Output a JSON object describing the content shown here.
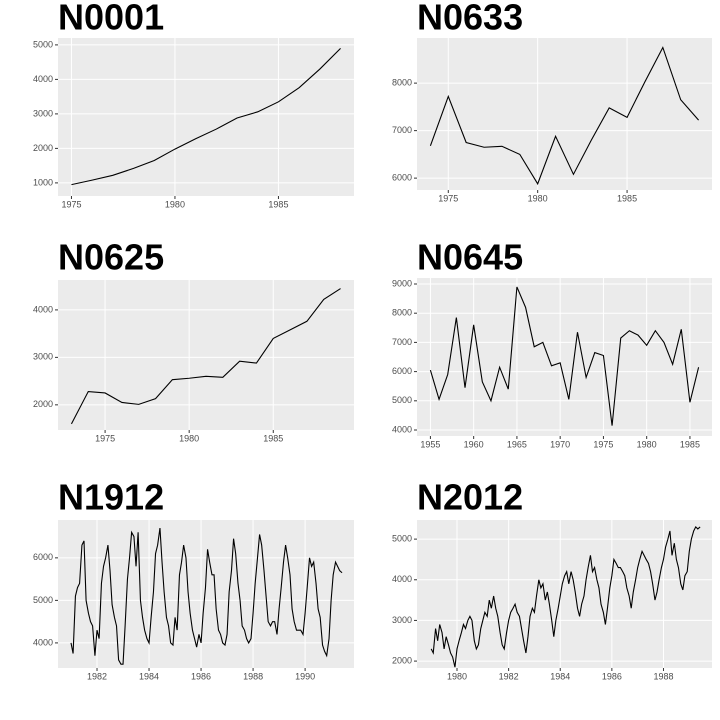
{
  "chart_data": [
    {
      "type": "line",
      "title": "N0001",
      "color": "#000000",
      "grid": true,
      "x": [
        1975,
        1976,
        1977,
        1978,
        1979,
        1980,
        1981,
        1982,
        1983,
        1984,
        1985,
        1986,
        1987,
        1988
      ],
      "values": [
        950,
        1080,
        1220,
        1420,
        1650,
        1980,
        2280,
        2560,
        2880,
        3060,
        3350,
        3760,
        4300,
        4900
      ],
      "xlim": [
        1974.35,
        1988.65
      ],
      "ylim": [
        620,
        5200
      ],
      "xticks": [
        1975,
        1980,
        1985
      ],
      "yticks": [
        1000,
        2000,
        3000,
        4000,
        5000
      ]
    },
    {
      "type": "line",
      "title": "N0633",
      "color": "#000000",
      "grid": true,
      "x": [
        1974,
        1975,
        1976,
        1977,
        1978,
        1979,
        1980,
        1981,
        1982,
        1983,
        1984,
        1985,
        1986,
        1987,
        1988,
        1989
      ],
      "values": [
        6680,
        7720,
        6750,
        6650,
        6670,
        6500,
        5880,
        6880,
        6080,
        6800,
        7480,
        7280,
        8030,
        8750,
        7650,
        7220
      ],
      "xlim": [
        1973.25,
        1989.75
      ],
      "ylim": [
        5750,
        8950
      ],
      "xticks": [
        1975,
        1980,
        1985
      ],
      "yticks": [
        6000,
        7000,
        8000
      ]
    },
    {
      "type": "line",
      "title": "N0625",
      "color": "#000000",
      "grid": true,
      "x": [
        1973,
        1974,
        1975,
        1976,
        1977,
        1978,
        1979,
        1980,
        1981,
        1982,
        1983,
        1984,
        1985,
        1986,
        1987,
        1988,
        1989
      ],
      "values": [
        1600,
        2280,
        2250,
        2050,
        2010,
        2130,
        2530,
        2560,
        2600,
        2580,
        2920,
        2880,
        3400,
        3580,
        3760,
        4220,
        4450
      ],
      "xlim": [
        1972.2,
        1989.8
      ],
      "ylim": [
        1470,
        4630
      ],
      "xticks": [
        1975,
        1980,
        1985
      ],
      "yticks": [
        2000,
        3000,
        4000
      ]
    },
    {
      "type": "line",
      "title": "N0645",
      "color": "#000000",
      "grid": true,
      "x": [
        1955,
        1956,
        1957,
        1958,
        1959,
        1960,
        1961,
        1962,
        1963,
        1964,
        1965,
        1966,
        1967,
        1968,
        1969,
        1970,
        1971,
        1972,
        1973,
        1974,
        1975,
        1976,
        1977,
        1978,
        1979,
        1980,
        1981,
        1982,
        1983,
        1984,
        1985,
        1986
      ],
      "values": [
        6050,
        5050,
        5900,
        7850,
        5450,
        7600,
        5650,
        5000,
        6150,
        5400,
        8900,
        8200,
        6850,
        7000,
        6200,
        6300,
        5050,
        7350,
        5800,
        6650,
        6550,
        4150,
        7150,
        7400,
        7250,
        6900,
        7400,
        7000,
        6250,
        7450,
        4950,
        6150
      ],
      "xlim": [
        1953.45,
        1987.55
      ],
      "ylim": [
        3795,
        9205
      ],
      "xticks": [
        1955,
        1960,
        1965,
        1970,
        1975,
        1980,
        1985
      ],
      "yticks": [
        4000,
        5000,
        6000,
        7000,
        8000,
        9000
      ]
    },
    {
      "type": "line",
      "title": "N1912",
      "color": "#000000",
      "grid": true,
      "x": [
        1981,
        1981.08,
        1981.17,
        1981.25,
        1981.33,
        1981.42,
        1981.5,
        1981.58,
        1981.67,
        1981.75,
        1981.83,
        1981.92,
        1982,
        1982.08,
        1982.17,
        1982.25,
        1982.33,
        1982.42,
        1982.5,
        1982.58,
        1982.67,
        1982.75,
        1982.83,
        1982.92,
        1983,
        1983.08,
        1983.17,
        1983.25,
        1983.33,
        1983.42,
        1983.5,
        1983.58,
        1983.67,
        1983.75,
        1983.83,
        1983.92,
        1984,
        1984.08,
        1984.17,
        1984.25,
        1984.33,
        1984.42,
        1984.5,
        1984.58,
        1984.67,
        1984.75,
        1984.83,
        1984.92,
        1985,
        1985.08,
        1985.17,
        1985.25,
        1985.33,
        1985.42,
        1985.5,
        1985.58,
        1985.67,
        1985.75,
        1985.83,
        1985.92,
        1986,
        1986.08,
        1986.17,
        1986.25,
        1986.33,
        1986.42,
        1986.5,
        1986.58,
        1986.67,
        1986.75,
        1986.83,
        1986.92,
        1987,
        1987.08,
        1987.17,
        1987.25,
        1987.33,
        1987.42,
        1987.5,
        1987.58,
        1987.67,
        1987.75,
        1987.83,
        1987.92,
        1988,
        1988.08,
        1988.17,
        1988.25,
        1988.33,
        1988.42,
        1988.5,
        1988.58,
        1988.67,
        1988.75,
        1988.83,
        1988.92,
        1989,
        1989.08,
        1989.17,
        1989.25,
        1989.33,
        1989.42,
        1989.5,
        1989.58,
        1989.67,
        1989.75,
        1989.83,
        1989.92,
        1990,
        1990.08,
        1990.17,
        1990.25,
        1990.33,
        1990.42,
        1990.5,
        1990.58,
        1990.67,
        1990.75,
        1990.83,
        1990.92,
        1991,
        1991.08,
        1991.17,
        1991.25,
        1991.33,
        1991.42
      ],
      "values": [
        4000,
        3750,
        5100,
        5300,
        5400,
        6300,
        6400,
        5000,
        4700,
        4500,
        4400,
        3700,
        4300,
        4100,
        5400,
        5800,
        6000,
        6300,
        5700,
        4900,
        4600,
        4400,
        3600,
        3500,
        3500,
        4400,
        5500,
        6000,
        6600,
        6500,
        5800,
        6600,
        5000,
        4600,
        4300,
        4100,
        4000,
        4600,
        5200,
        6100,
        6300,
        6700,
        5900,
        5200,
        4600,
        4400,
        4000,
        3950,
        4600,
        4300,
        5600,
        5900,
        6300,
        6000,
        5200,
        4700,
        4300,
        4100,
        3900,
        4200,
        4000,
        4700,
        5300,
        6200,
        5900,
        5600,
        5600,
        4800,
        4300,
        4200,
        4000,
        3950,
        4200,
        5200,
        5700,
        6450,
        6100,
        5400,
        5000,
        4400,
        4300,
        4100,
        4000,
        4100,
        4700,
        5400,
        6000,
        6550,
        6300,
        5700,
        5100,
        4500,
        4400,
        4500,
        4500,
        4200,
        4800,
        5300,
        5900,
        6300,
        6000,
        5600,
        4800,
        4500,
        4300,
        4300,
        4300,
        4200,
        4700,
        5300,
        6000,
        5800,
        5900,
        5400,
        4800,
        4600,
        3950,
        3800,
        3700,
        4100,
        5000,
        5600,
        5900,
        5800,
        5700,
        5650
      ],
      "xlim": [
        1980.5,
        1991.88
      ],
      "ylim": [
        3410,
        6890
      ],
      "xticks": [
        1982,
        1984,
        1986,
        1988,
        1990
      ],
      "yticks": [
        4000,
        5000,
        6000
      ]
    },
    {
      "type": "line",
      "title": "N2012",
      "color": "#000000",
      "grid": true,
      "x": [
        1979,
        1979.08,
        1979.17,
        1979.25,
        1979.33,
        1979.42,
        1979.5,
        1979.58,
        1979.67,
        1979.75,
        1979.83,
        1979.92,
        1980,
        1980.08,
        1980.17,
        1980.25,
        1980.33,
        1980.42,
        1980.5,
        1980.58,
        1980.67,
        1980.75,
        1980.83,
        1980.92,
        1981,
        1981.08,
        1981.17,
        1981.25,
        1981.33,
        1981.42,
        1981.5,
        1981.58,
        1981.67,
        1981.75,
        1981.83,
        1981.92,
        1982,
        1982.08,
        1982.17,
        1982.25,
        1982.33,
        1982.42,
        1982.5,
        1982.58,
        1982.67,
        1982.75,
        1982.83,
        1982.92,
        1983,
        1983.08,
        1983.17,
        1983.25,
        1983.33,
        1983.42,
        1983.5,
        1983.58,
        1983.67,
        1983.75,
        1983.83,
        1983.92,
        1984,
        1984.08,
        1984.17,
        1984.25,
        1984.33,
        1984.42,
        1984.5,
        1984.58,
        1984.67,
        1984.75,
        1984.83,
        1984.92,
        1985,
        1985.08,
        1985.17,
        1985.25,
        1985.33,
        1985.42,
        1985.5,
        1985.58,
        1985.67,
        1985.75,
        1985.83,
        1985.92,
        1986,
        1986.08,
        1986.17,
        1986.25,
        1986.33,
        1986.42,
        1986.5,
        1986.58,
        1986.67,
        1986.75,
        1986.83,
        1986.92,
        1987,
        1987.08,
        1987.17,
        1987.25,
        1987.33,
        1987.42,
        1987.5,
        1987.58,
        1987.67,
        1987.75,
        1987.83,
        1987.92,
        1988,
        1988.08,
        1988.17,
        1988.25,
        1988.33,
        1988.42,
        1988.5,
        1988.58,
        1988.67,
        1988.75,
        1988.83,
        1988.92,
        1989,
        1989.08,
        1989.17,
        1989.25,
        1989.33,
        1989.42
      ],
      "values": [
        2300,
        2200,
        2800,
        2500,
        2900,
        2700,
        2300,
        2600,
        2400,
        2200,
        2100,
        1850,
        2300,
        2500,
        2700,
        2900,
        2800,
        3000,
        3100,
        3000,
        2500,
        2300,
        2400,
        2800,
        3000,
        3200,
        3100,
        3500,
        3300,
        3600,
        3300,
        3100,
        2700,
        2400,
        2300,
        2700,
        3000,
        3200,
        3300,
        3400,
        3200,
        3100,
        2800,
        2500,
        2200,
        2600,
        3100,
        3300,
        3200,
        3600,
        4000,
        3800,
        3900,
        3500,
        3700,
        3400,
        3000,
        2600,
        3000,
        3300,
        3600,
        3900,
        4100,
        4200,
        3900,
        4200,
        4000,
        3700,
        3300,
        3100,
        3400,
        3600,
        4000,
        4300,
        4600,
        4200,
        4300,
        4000,
        3800,
        3400,
        3200,
        2900,
        3300,
        3800,
        4100,
        4500,
        4400,
        4300,
        4300,
        4200,
        4100,
        3800,
        3600,
        3300,
        3700,
        4000,
        4300,
        4500,
        4700,
        4600,
        4500,
        4400,
        4200,
        3900,
        3500,
        3700,
        4000,
        4300,
        4500,
        4800,
        5000,
        5200,
        4600,
        4900,
        4500,
        4300,
        3900,
        3750,
        4100,
        4200,
        4700,
        5000,
        5200,
        5300,
        5250,
        5300
      ],
      "xlim": [
        1978.45,
        1989.88
      ],
      "ylim": [
        1830,
        5470
      ],
      "xticks": [
        1980,
        1982,
        1984,
        1986,
        1988
      ],
      "yticks": [
        2000,
        3000,
        4000,
        5000
      ]
    }
  ]
}
